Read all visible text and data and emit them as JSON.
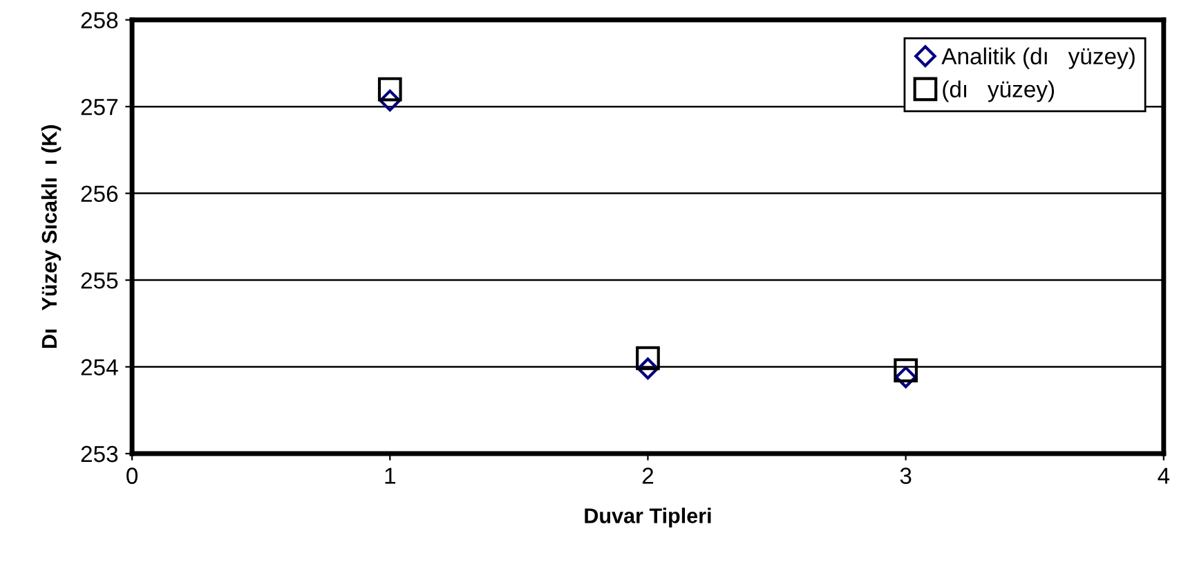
{
  "chart_data": {
    "type": "scatter",
    "xlabel": "Duvar Tipleri",
    "ylabel": "Dı   Yüzey Sıcaklı  ı (K)",
    "x": [
      1,
      2,
      3
    ],
    "series": [
      {
        "name": "Analitik (dı   yüzey)",
        "color": "#000080",
        "marker": "diamond",
        "values": [
          257.07,
          253.98,
          253.88
        ]
      },
      {
        "name": "(dı   yüzey)",
        "color": "#000000",
        "marker": "square",
        "values": [
          257.2,
          254.1,
          253.96
        ]
      }
    ],
    "xlim": [
      0,
      4
    ],
    "xticks": [
      0,
      1,
      2,
      3,
      4
    ],
    "ylim": [
      253,
      258
    ],
    "yticks": [
      253,
      254,
      255,
      256,
      257,
      258
    ],
    "grid": "y",
    "legend": "top right"
  }
}
